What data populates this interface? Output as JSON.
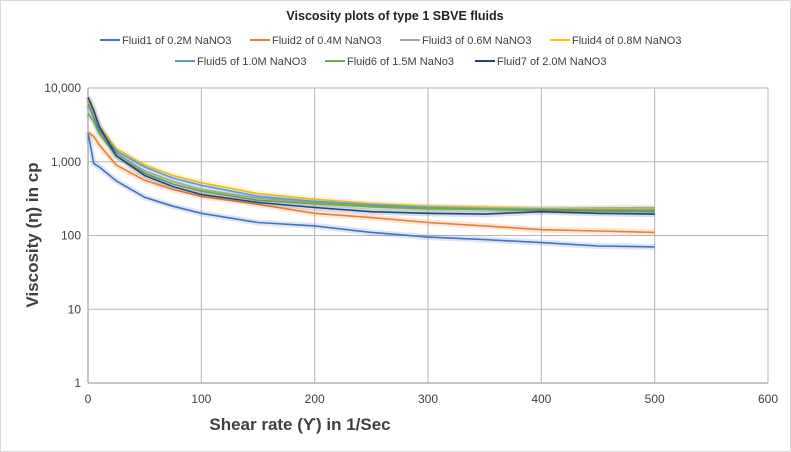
{
  "chart_data": {
    "type": "line",
    "title": "Viscosity plots of type 1 SBVE fluids",
    "xlabel": "Shear rate (ϒ) in 1/Sec",
    "ylabel": "Viscosity (η) in cp",
    "xlim": [
      0,
      600
    ],
    "ylim": [
      1,
      10000
    ],
    "yscale": "log",
    "xticks": [
      "0",
      "100",
      "200",
      "300",
      "400",
      "500",
      "600"
    ],
    "yticks": [
      "1",
      "10",
      "100",
      "1,000",
      "10,000"
    ],
    "grid": true,
    "legend_position": "top",
    "x": [
      0,
      5,
      10,
      25,
      50,
      75,
      100,
      150,
      200,
      250,
      300,
      350,
      400,
      450,
      500
    ],
    "series": [
      {
        "name": "Fluid1 of 0.2M NaNO3",
        "color": "#4472C4",
        "values": [
          2500,
          950,
          850,
          550,
          330,
          250,
          200,
          150,
          135,
          110,
          95,
          88,
          80,
          72,
          70
        ]
      },
      {
        "name": "Fluid2 of 0.4M NaNO3",
        "color": "#ED7D31",
        "values": [
          2500,
          2200,
          1700,
          900,
          560,
          420,
          340,
          265,
          200,
          175,
          150,
          135,
          120,
          115,
          110
        ]
      },
      {
        "name": "Fluid3 of 0.6M NaNO3",
        "color": "#A5A5A5",
        "values": [
          6000,
          4000,
          2500,
          1300,
          750,
          540,
          420,
          320,
          280,
          250,
          240,
          235,
          230,
          235,
          240
        ]
      },
      {
        "name": "Fluid4 of 0.8M NaNO3",
        "color": "#FFC000",
        "values": [
          7000,
          4500,
          3000,
          1500,
          900,
          650,
          520,
          370,
          310,
          270,
          250,
          240,
          230,
          230,
          230
        ]
      },
      {
        "name": "Fluid5 of 1.0M NaNO3",
        "color": "#5B9BD5",
        "values": [
          6000,
          4000,
          2700,
          1400,
          850,
          600,
          480,
          340,
          290,
          260,
          240,
          230,
          225,
          222,
          220
        ]
      },
      {
        "name": "Fluid6 of 1.5M NaNo3",
        "color": "#70AD47",
        "values": [
          4500,
          3500,
          2400,
          1200,
          700,
          500,
          400,
          300,
          270,
          245,
          230,
          225,
          220,
          215,
          210
        ]
      },
      {
        "name": "Fluid7 of 2.0M NaNO3",
        "color": "#264478",
        "values": [
          7500,
          5000,
          3000,
          1200,
          650,
          460,
          360,
          280,
          240,
          210,
          200,
          195,
          210,
          200,
          195
        ]
      }
    ]
  }
}
